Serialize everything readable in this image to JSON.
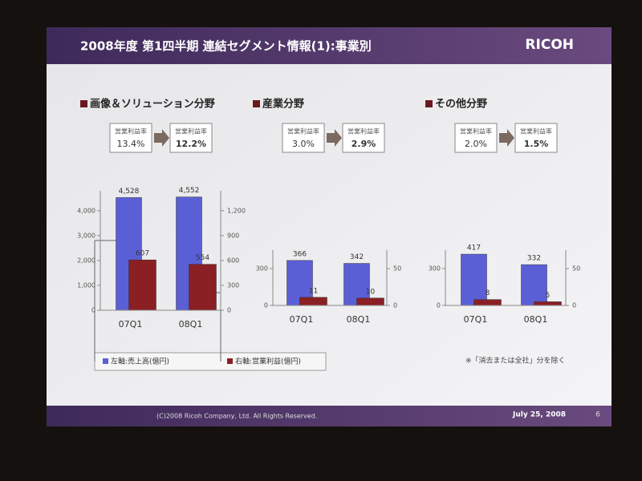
{
  "header": {
    "title": "2008年度 第1四半期 連結セグメント情報(1):事業別",
    "logo": "RICOH"
  },
  "chart_data": [
    {
      "type": "bar",
      "title": "画像＆ソリューション分野",
      "margin": {
        "label": "営業利益率",
        "from": "13.4%",
        "to": "12.2%"
      },
      "categories": [
        "07Q1",
        "08Q1"
      ],
      "series": [
        {
          "name": "左軸:売上高(億円)",
          "color": "#5b5fd6",
          "values": [
            4528,
            4552
          ],
          "value_labels": [
            "4,528",
            "4,552"
          ]
        },
        {
          "name": "右軸:営業利益(億円)",
          "color": "#8a1f24",
          "values": [
            607,
            554
          ],
          "axis": "y2"
        }
      ],
      "ylim": [
        0,
        4800
      ],
      "yticks": [
        0,
        {
          "value": 1000,
          "label": "1,000"
        },
        {
          "value": 2000,
          "label": "2,000"
        },
        {
          "value": 3000,
          "label": "3,000"
        },
        {
          "value": 4000,
          "label": "4,000"
        }
      ],
      "y2lim": [
        0,
        1440
      ],
      "y2ticks": [
        0,
        300,
        600,
        900,
        {
          "value": 1200,
          "label": "1,200"
        }
      ]
    },
    {
      "type": "bar",
      "title": "産業分野",
      "margin": {
        "label": "営業利益率",
        "from": "3.0%",
        "to": "2.9%"
      },
      "categories": [
        "07Q1",
        "08Q1"
      ],
      "series": [
        {
          "color": "#5b5fd6",
          "values": [
            366,
            342
          ]
        },
        {
          "color": "#8a1f24",
          "values": [
            11,
            10
          ],
          "axis": "y2"
        }
      ],
      "ylim": [
        0,
        450
      ],
      "yticks": [
        0,
        300
      ],
      "y2lim": [
        0,
        75
      ],
      "y2ticks": [
        0,
        50
      ]
    },
    {
      "type": "bar",
      "title": "その他分野",
      "margin": {
        "label": "営業利益率",
        "from": "2.0%",
        "to": "1.5%"
      },
      "categories": [
        "07Q1",
        "08Q1"
      ],
      "series": [
        {
          "color": "#5b5fd6",
          "values": [
            417,
            332
          ]
        },
        {
          "color": "#8a1f24",
          "values": [
            8,
            5
          ],
          "axis": "y2"
        }
      ],
      "ylim": [
        0,
        450
      ],
      "yticks": [
        0,
        300
      ],
      "y2lim": [
        0,
        75
      ],
      "y2ticks": [
        0,
        50
      ]
    }
  ],
  "note": "※「消去または全社」分を除く",
  "footer": {
    "copyright": "(C)2008 Ricoh Company, Ltd. All Rights Reserved.",
    "date": "July 25, 2008",
    "page": "6"
  }
}
